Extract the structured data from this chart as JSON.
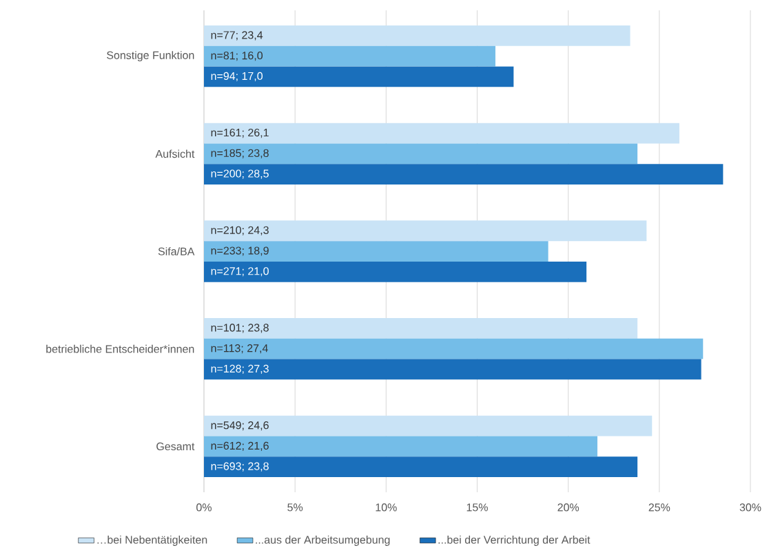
{
  "chart_data": {
    "type": "bar",
    "orientation": "horizontal",
    "categories": [
      "Sonstige Funktion",
      "Aufsicht",
      "Sifa/BA",
      "betriebliche Entscheider*innen",
      "Gesamt"
    ],
    "series": [
      {
        "name": "…bei Nebentätigkeiten",
        "color": "#c9e3f6",
        "values": [
          23.4,
          26.1,
          24.3,
          23.8,
          24.6
        ],
        "value_labels": [
          "n=77; 23,4",
          "n=161; 26,1",
          "n=210; 24,3",
          "n=101; 23,8",
          "n=549; 24,6"
        ]
      },
      {
        "name": "...aus der Arbeitsumgebung",
        "color": "#74bde8",
        "values": [
          16.0,
          23.8,
          18.9,
          27.4,
          21.6
        ],
        "value_labels": [
          "n=81; 16,0",
          "n=185; 23,8",
          "n=233; 18,9",
          "n=113; 27,4",
          "n=612; 21,6"
        ]
      },
      {
        "name": "...bei der Verrichtung der Arbeit",
        "color": "#1a6fbb",
        "values": [
          17.0,
          28.5,
          21.0,
          27.3,
          23.8
        ],
        "value_labels": [
          "n=94; 17,0",
          "n=200; 28,5",
          "n=271; 21,0",
          "n=128; 27,3",
          "n=693; 23,8"
        ]
      }
    ],
    "xlim": [
      0,
      30
    ],
    "xticks": [
      {
        "value": 0,
        "label": "0%"
      },
      {
        "value": 5,
        "label": "5%"
      },
      {
        "value": 10,
        "label": "10%"
      },
      {
        "value": 15,
        "label": "15%"
      },
      {
        "value": 20,
        "label": "20%"
      },
      {
        "value": 25,
        "label": "25%"
      },
      {
        "value": 30,
        "label": "30%"
      }
    ],
    "grid": "x",
    "legend": "bottom"
  }
}
